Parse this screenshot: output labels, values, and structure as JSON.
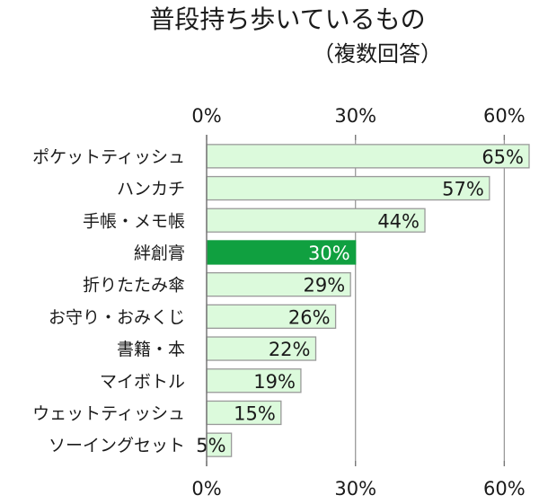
{
  "title": "普段持ち歩いているもの",
  "subtitle": "（複数回答）",
  "chart_data": {
    "type": "bar",
    "orientation": "horizontal",
    "title": "普段持ち歩いているもの",
    "subtitle": "（複数回答）",
    "categories": [
      "ポケットティッシュ",
      "ハンカチ",
      "手帳・メモ帳",
      "絆創膏",
      "折りたたみ傘",
      "お守り・おみくじ",
      "書籍・本",
      "マイボトル",
      "ウェットティッシュ",
      "ソーイングセット"
    ],
    "values": [
      65,
      57,
      44,
      30,
      29,
      26,
      22,
      19,
      15,
      5
    ],
    "data_labels": [
      "65%",
      "57%",
      "44%",
      "30%",
      "29%",
      "26%",
      "22%",
      "19%",
      "15%",
      "5%"
    ],
    "highlight_category": "絆創膏",
    "xlim": [
      0,
      65
    ],
    "x_ticks": [
      0,
      30,
      60
    ],
    "x_tick_labels": [
      "0%",
      "30%",
      "60%"
    ],
    "axis_top": true,
    "axis_bottom": true,
    "grid": "vertical-major",
    "colors": {
      "bar": "#dcfadc",
      "bar_stroke": "#9a9a9a",
      "highlight": "#10a040",
      "grid": "#9a9a9a",
      "highlight_text": "#ffffff"
    }
  }
}
